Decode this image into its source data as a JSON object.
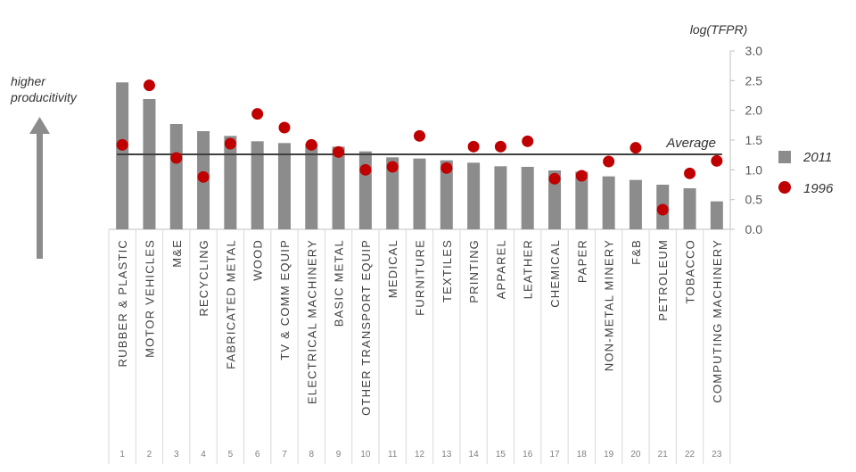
{
  "chart_data": {
    "type": "bar",
    "ylabel": "log(TFPR)",
    "ylim": [
      0,
      3.0
    ],
    "yticks": [
      "0.0",
      "0.5",
      "1.0",
      "1.5",
      "2.0",
      "2.5",
      "3.0"
    ],
    "categories": [
      "RUBBER & PLASTIC",
      "MOTOR VEHICLES",
      "M&E",
      "RECYCLING",
      "FABRICATED METAL",
      "WOOD",
      "TV & COMM EQUIP",
      "ELECTRICAL MACHINERY",
      "BASIC METAL",
      "OTHER TRANSPORT EQUIP",
      "MEDICAL",
      "FURNITURE",
      "TEXTILES",
      "PRINTING",
      "APPAREL",
      "LEATHER",
      "CHEMICAL",
      "PAPER",
      "NON-METAL MINERY",
      "F&B",
      "PETROLEUM",
      "TOBACCO",
      "COMPUTING MACHINERY"
    ],
    "indices": [
      "1",
      "2",
      "3",
      "4",
      "5",
      "6",
      "7",
      "8",
      "9",
      "10",
      "11",
      "12",
      "13",
      "14",
      "15",
      "16",
      "17",
      "18",
      "19",
      "20",
      "21",
      "22",
      "23"
    ],
    "series": [
      {
        "name": "2011",
        "kind": "bar",
        "color": "#8c8c8c",
        "values": [
          2.47,
          2.19,
          1.77,
          1.65,
          1.57,
          1.48,
          1.45,
          1.44,
          1.39,
          1.31,
          1.21,
          1.19,
          1.16,
          1.12,
          1.06,
          1.05,
          0.99,
          0.97,
          0.89,
          0.83,
          0.75,
          0.69,
          0.47
        ]
      },
      {
        "name": "1996",
        "kind": "dot",
        "color": "#c00000",
        "values": [
          1.42,
          2.42,
          1.2,
          0.88,
          1.44,
          1.94,
          1.71,
          1.42,
          1.3,
          1.0,
          1.05,
          1.57,
          1.03,
          1.39,
          1.39,
          1.48,
          0.85,
          0.9,
          1.14,
          1.37,
          0.33,
          0.94,
          1.15
        ]
      }
    ],
    "average": {
      "label": "Average",
      "value": 1.26
    },
    "annotation": "higher\nproducitivity",
    "legend_position": "right",
    "grid": false
  },
  "colors": {
    "bar": "#8c8c8c",
    "dot": "#c00000",
    "average_line": "#404040",
    "arrow": "#8c8c8c"
  }
}
